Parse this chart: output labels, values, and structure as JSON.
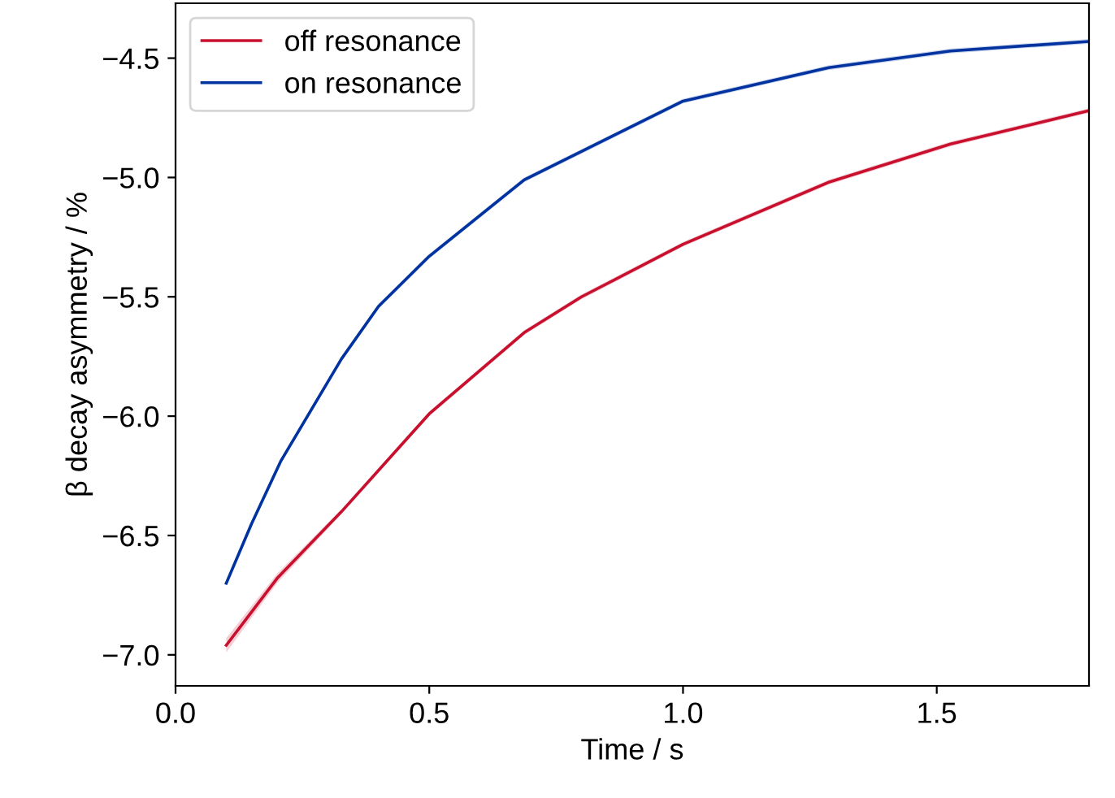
{
  "chart_data": {
    "type": "line",
    "xlabel": "Time / s",
    "ylabel": "β decay asymmetry / %",
    "xlim": [
      0,
      1.8
    ],
    "ylim": [
      -7.13,
      -4.27
    ],
    "xticks": [
      {
        "value": 0,
        "label": "0.0"
      },
      0.5,
      {
        "value": 1,
        "label": "1.0"
      },
      1.5
    ],
    "yticks": [
      {
        "value": -7,
        "label": "−7.0"
      },
      {
        "value": -6.5,
        "label": "−6.5"
      },
      {
        "value": -6,
        "label": "−6.0"
      },
      {
        "value": -5.5,
        "label": "−5.5"
      },
      {
        "value": -5,
        "label": "−5.0"
      },
      {
        "value": -4.5,
        "label": "−4.5"
      }
    ],
    "legend": "top left",
    "grid": false,
    "marker": "none",
    "line_style": "solid",
    "series": [
      {
        "name": "off resonance",
        "color": "#c8102e",
        "x": [
          0.1,
          0.2,
          0.327,
          0.5,
          0.687,
          0.8,
          1.0,
          1.287,
          1.527,
          1.8
        ],
        "values": [
          -6.96,
          -6.68,
          -6.4,
          -5.99,
          -5.65,
          -5.5,
          -5.28,
          -5.02,
          -4.86,
          -4.72
        ],
        "lower": [
          -6.99,
          -6.7,
          -6.41,
          -6.0,
          -5.66,
          -5.51,
          -5.29,
          -5.03,
          -4.87,
          -4.73
        ],
        "upper": [
          -6.93,
          -6.66,
          -6.39,
          -5.98,
          -5.64,
          -5.49,
          -5.27,
          -5.01,
          -4.85,
          -4.71
        ]
      },
      {
        "name": "on resonance",
        "color": "#0033a0",
        "x": [
          0.1,
          0.15,
          0.207,
          0.327,
          0.4,
          0.5,
          0.687,
          1.0,
          1.287,
          1.527,
          1.8
        ],
        "values": [
          -6.7,
          -6.45,
          -6.19,
          -5.76,
          -5.54,
          -5.33,
          -5.01,
          -4.68,
          -4.54,
          -4.47,
          -4.43
        ],
        "lower": [
          -6.71,
          -6.46,
          -6.2,
          -5.77,
          -5.55,
          -5.34,
          -5.02,
          -4.69,
          -4.55,
          -4.48,
          -4.44
        ],
        "upper": [
          -6.69,
          -6.44,
          -6.18,
          -5.75,
          -5.53,
          -5.32,
          -5.0,
          -4.67,
          -4.53,
          -4.46,
          -4.42
        ]
      }
    ]
  }
}
